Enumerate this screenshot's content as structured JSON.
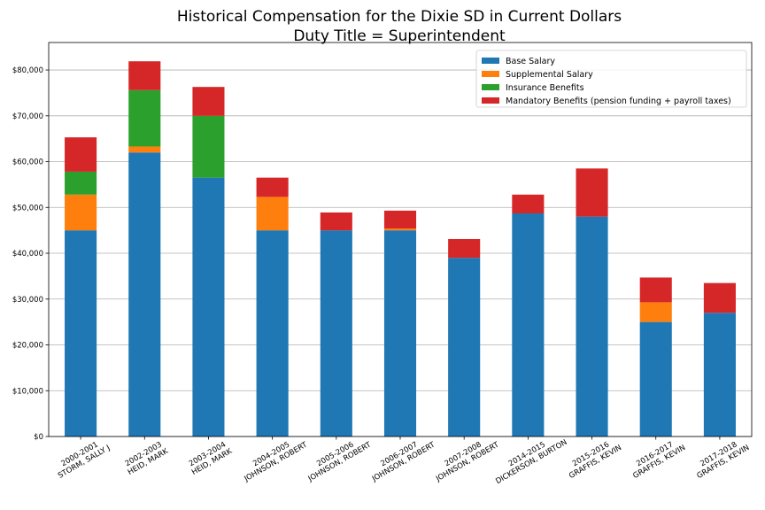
{
  "chart_data": {
    "type": "bar",
    "stacked": true,
    "title": "Historical Compensation for the Dixie SD in Current Dollars",
    "subtitle": "Duty Title = Superintendent",
    "xlabel": "",
    "ylabel": "",
    "ylim": [
      0,
      86000
    ],
    "yticks": [
      0,
      10000,
      20000,
      30000,
      40000,
      50000,
      60000,
      70000,
      80000
    ],
    "ytick_labels": [
      "$0",
      "$10,000",
      "$20,000",
      "$30,000",
      "$40,000",
      "$50,000",
      "$60,000",
      "$70,000",
      "$80,000"
    ],
    "grid": "horizontal",
    "legend_position": "top-right",
    "categories": [
      [
        "2000-2001",
        "STORM, SALLY J"
      ],
      [
        "2002-2003",
        "HEID, MARK"
      ],
      [
        "2003-2004",
        "HEID, MARK"
      ],
      [
        "2004-2005",
        "JOHNSON, ROBERT"
      ],
      [
        "2005-2006",
        "JOHNSON, ROBERT"
      ],
      [
        "2006-2007",
        "JOHNSON, ROBERT"
      ],
      [
        "2007-2008",
        "JOHNSON, ROBERT"
      ],
      [
        "2014-2015",
        "DICKERSON, BURTON"
      ],
      [
        "2015-2016",
        "GRAFFIS, KEVIN"
      ],
      [
        "2016-2017",
        "GRAFFIS, KEVIN"
      ],
      [
        "2017-2018",
        "GRAFFIS, KEVIN"
      ]
    ],
    "series": [
      {
        "name": "Base Salary",
        "color": "#1f77b4",
        "values": [
          45000,
          62000,
          56500,
          45000,
          45000,
          45000,
          39000,
          48700,
          48000,
          25000,
          27000
        ]
      },
      {
        "name": "Supplemental Salary",
        "color": "#ff7f0e",
        "values": [
          7800,
          1300,
          0,
          7300,
          0,
          400,
          0,
          0,
          0,
          4300,
          0
        ]
      },
      {
        "name": "Insurance Benefits",
        "color": "#2ca02c",
        "values": [
          5000,
          12300,
          13500,
          0,
          0,
          0,
          0,
          0,
          0,
          0,
          0
        ]
      },
      {
        "name": "Mandatory Benefits (pension funding + payroll taxes)",
        "color": "#d62728",
        "values": [
          7500,
          6300,
          6300,
          4200,
          3900,
          3900,
          4100,
          4100,
          10500,
          5400,
          6500
        ]
      }
    ]
  }
}
